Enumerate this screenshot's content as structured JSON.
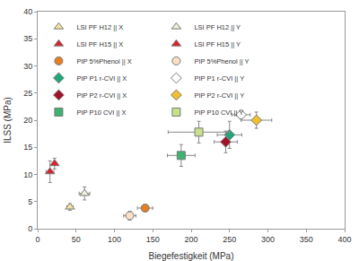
{
  "chart_data": {
    "type": "scatter",
    "x_label": "Biegefestigkeit (MPa)",
    "y_label": "ILSS (MPa)",
    "xlim": [
      0,
      400
    ],
    "xticks": [
      0,
      50,
      100,
      150,
      200,
      250,
      300,
      350,
      400
    ],
    "ylim": [
      0,
      40
    ],
    "yticks": [
      0,
      5,
      10,
      15,
      20,
      25,
      30,
      35,
      40
    ],
    "grid": false,
    "legend": "top",
    "series": [
      {
        "name": "LSI PF H12 || X",
        "marker": "triangle-up",
        "color": "#f3e3a0",
        "x": [
          42
        ],
        "values": [
          4
        ],
        "error_x": [
          4
        ],
        "error_y": [
          0.6
        ]
      },
      {
        "name": "LSI PF H12 || Y",
        "marker": "triangle-up",
        "color": "#eef0d8",
        "x": [
          61
        ],
        "values": [
          6.5
        ],
        "error_x": [
          7
        ],
        "error_y": [
          1.2
        ]
      },
      {
        "name": "LSI PF H15 || X",
        "marker": "triangle-up",
        "color": "#e0202a",
        "x": [
          16
        ],
        "values": [
          10.5
        ],
        "error_x": [
          5
        ],
        "error_y": [
          2
        ]
      },
      {
        "name": "LSI PF H15 || Y",
        "marker": "triangle-up",
        "color": "#e0202a",
        "x": [
          22
        ],
        "values": [
          12
        ],
        "error_x": [
          3
        ],
        "error_y": [
          1
        ]
      },
      {
        "name": "PIP 5%Phenol || X",
        "marker": "circle",
        "color": "#e67e22",
        "x": [
          140
        ],
        "values": [
          3.8
        ],
        "error_x": [
          10
        ],
        "error_y": [
          0.4
        ]
      },
      {
        "name": "PIP 5%Phenol || Y",
        "marker": "circle",
        "color": "#fbe0c8",
        "x": [
          120
        ],
        "values": [
          2.4
        ],
        "error_x": [
          8
        ],
        "error_y": [
          0.8
        ]
      },
      {
        "name": "PIP P1 r-CVI || X",
        "marker": "diamond",
        "color": "#1fa67a",
        "x": [
          250
        ],
        "values": [
          17.3
        ],
        "error_x": [
          16
        ],
        "error_y": [
          2.5
        ]
      },
      {
        "name": "PIP P1 r-CVI || Y",
        "marker": "diamond",
        "color": "#ffffff",
        "x": [
          265
        ],
        "values": [
          21
        ],
        "error_x": [
          12
        ],
        "error_y": [
          0.8
        ]
      },
      {
        "name": "PIP P2 r-CVI || X",
        "marker": "diamond",
        "color": "#a0122a",
        "x": [
          245
        ],
        "values": [
          16
        ],
        "error_x": [
          15
        ],
        "error_y": [
          2
        ]
      },
      {
        "name": "PIP P2 r-CVI || Y",
        "marker": "diamond",
        "color": "#f0c030",
        "x": [
          285
        ],
        "values": [
          20
        ],
        "error_x": [
          20
        ],
        "error_y": [
          1.5
        ]
      },
      {
        "name": "PIP P10 CVI || X",
        "marker": "square",
        "color": "#3cb371",
        "x": [
          187
        ],
        "values": [
          13.5
        ],
        "error_x": [
          18
        ],
        "error_y": [
          2
        ]
      },
      {
        "name": "PIP P10 CVI || Y",
        "marker": "square",
        "color": "#c8e08c",
        "x": [
          210
        ],
        "values": [
          17.8
        ],
        "error_x": [
          40
        ],
        "error_y": [
          2
        ]
      }
    ]
  }
}
